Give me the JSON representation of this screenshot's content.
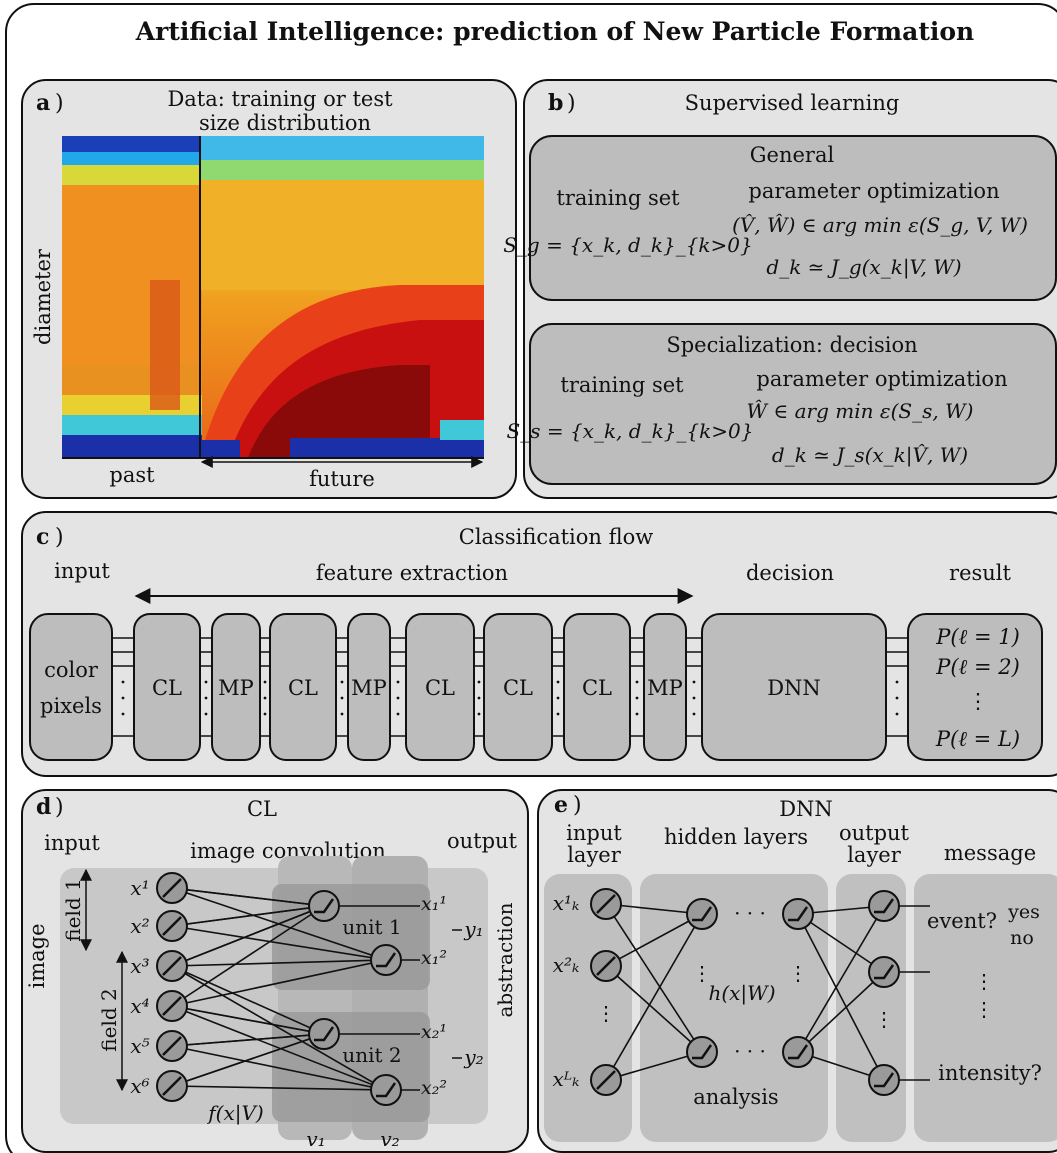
{
  "title": "Artificial Intelligence: prediction of New Particle Formation",
  "panel_a": {
    "label": "a",
    "title_line1": "Data: training or test",
    "title_line2": "size distribution",
    "y_label": "diameter",
    "past_label": "past",
    "future_label": "future"
  },
  "panel_b": {
    "label": "b",
    "title": "Supervised learning",
    "general": {
      "title": "General",
      "training_set_label": "training set",
      "set_formula": "S_g = {x_k, d_k}_{k>0}",
      "param_label": "parameter optimization",
      "argmin_formula": "(V̂, Ŵ) ∈ arg min ε(S_g, V, W)",
      "model_formula": "d_k ≃ J_g(x_k|V, W)"
    },
    "special": {
      "title": "Specialization: decision",
      "training_set_label": "training set",
      "set_formula": "S_s = {x_k, d_k}_{k>0}",
      "param_label": "parameter optimization",
      "argmin_formula": "Ŵ ∈ arg min ε(S_s, W)",
      "model_formula": "d_k ≃ J_s(x_k|V̂, W)"
    }
  },
  "panel_c": {
    "label": "c",
    "title": "Classification flow",
    "input_label": "input",
    "feature_label": "feature extraction",
    "decision_label": "decision",
    "result_label": "result",
    "input_box_line1": "color",
    "input_box_line2": "pixels",
    "blocks": [
      "CL",
      "MP",
      "CL",
      "MP",
      "CL",
      "CL",
      "CL",
      "MP"
    ],
    "dnn_label": "DNN",
    "results": [
      "P(ℓ = 1)",
      "P(ℓ = 2)",
      "⋮",
      "P(ℓ = L)"
    ]
  },
  "panel_d": {
    "label": "d",
    "title": "CL",
    "input_label": "input",
    "conv_label": "image convolution",
    "output_label": "output",
    "image_label": "image",
    "field1_label": "field 1",
    "field2_label": "field 2",
    "abstraction_label": "abstraction",
    "inputs": [
      "x¹",
      "x²",
      "x³",
      "x⁴",
      "x⁵",
      "x⁶"
    ],
    "unit1_label": "unit 1",
    "unit2_label": "unit 2",
    "outputs": [
      "x₁¹",
      "x₁²",
      "x₂¹",
      "x₂²"
    ],
    "y_labels": [
      "y₁",
      "y₂"
    ],
    "f_label": "f(x|V)",
    "v_labels": [
      "v₁",
      "v₂"
    ]
  },
  "panel_e": {
    "label": "e",
    "title": "DNN",
    "input_layer_line1": "input",
    "input_layer_line2": "layer",
    "hidden_label": "hidden layers",
    "output_layer_line1": "output",
    "output_layer_line2": "layer",
    "message_label": "message",
    "inputs": [
      "x¹ₖ",
      "x²ₖ",
      "xᴸₖ"
    ],
    "h_label": "h(x|W)",
    "analysis_label": "analysis",
    "event_label": "event?",
    "yes_label": "yes",
    "no_label": "no",
    "intensity_label": "intensity?"
  }
}
